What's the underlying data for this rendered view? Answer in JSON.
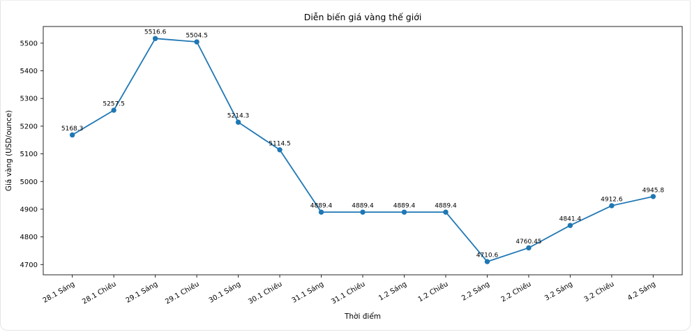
{
  "card": {
    "background": "#ffffff",
    "border_color": "#e4e4e4"
  },
  "chart_data": {
    "type": "line",
    "title": "Diễn biến giá vàng thế giới",
    "xlabel": "Thời điểm",
    "ylabel": "Giá vàng (USD/ounce)",
    "categories": [
      "28.1 Sáng",
      "28.1 Chiều",
      "29.1 Sáng",
      "29.1 Chiều",
      "30.1 Sáng",
      "30.1 Chiều",
      "31.1 Sáng",
      "31.1 Chiều",
      "1.2 Sáng",
      "1.2 Chiều",
      "2.2 Sáng",
      "2.2 Chiều",
      "3.2 Sáng",
      "3.2 Chiều",
      "4.2 Sáng"
    ],
    "values": [
      5168.3,
      5257.5,
      5516.6,
      5504.5,
      5214.3,
      5114.5,
      4889.4,
      4889.4,
      4889.4,
      4889.4,
      4710.6,
      4760.45,
      4841.4,
      4912.6,
      4945.8
    ],
    "point_labels": [
      "5168.3",
      "5257.5",
      "5516.6",
      "5504.5",
      "5214.3",
      "5114.5",
      "4889.4",
      "4889.4",
      "4889.4",
      "4889.4",
      "4710.6",
      "4760.45",
      "4841.4",
      "4912.6",
      "4945.8"
    ],
    "yticks": [
      4700,
      4800,
      4900,
      5000,
      5100,
      5200,
      5300,
      5400,
      5500
    ],
    "ylim": [
      4663,
      5560
    ],
    "xtick_rotation_deg": 30,
    "line_color": "#1f77b4",
    "marker": "circle",
    "grid": false,
    "legend_position": "none",
    "spine_color": "#262626"
  }
}
